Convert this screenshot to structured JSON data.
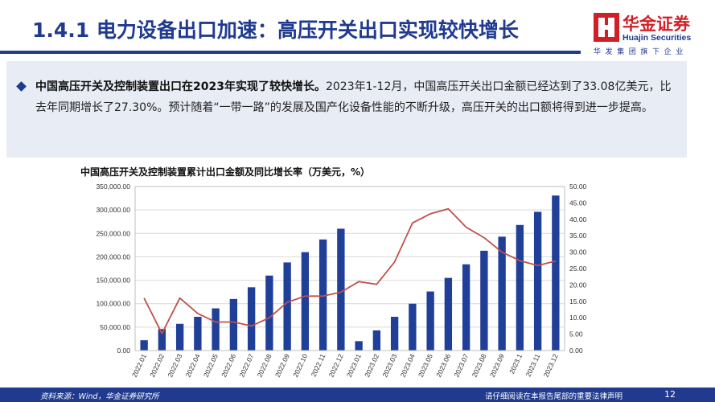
{
  "header": {
    "title": "1.4.1 电力设备出口加速：高压开关出口实现较快增长",
    "logo_cn": "华金证券",
    "logo_en": "Huajin Securities",
    "logo_tagline": "华发集团旗下企业"
  },
  "summary": {
    "lead": "中国高压开关及控制装置出口在2023年实现了较快增长。",
    "body": "2023年1-12月，中国高压开关出口金额已经达到了33.08亿美元，比去年同期增长了27.30%。预计随着“一带一路”的发展及国产化设备性能的不断升级，高压开关的出口额将得到进一步提高。"
  },
  "chart_data": {
    "type": "bar",
    "title": "中国高压开关及控制装置累计出口金额及同比增长率（万美元，%）",
    "categories": [
      "2022.01",
      "2022.02",
      "2022.03",
      "2022.04",
      "2022.05",
      "2022.06",
      "2022.07",
      "2022.08",
      "2022.09",
      "2022.10",
      "2022.11",
      "2022.12",
      "2023.01",
      "2023.02",
      "2023.03",
      "2023.04",
      "2023.05",
      "2023.06",
      "2023.07",
      "2023.08",
      "2023.09",
      "2023.1",
      "2023.11",
      "2023.12"
    ],
    "series": [
      {
        "type": "bar",
        "axis": "left",
        "color": "#1f3f98",
        "values": [
          22000,
          46000,
          57000,
          72000,
          90000,
          110000,
          135000,
          160000,
          188000,
          210000,
          237000,
          260000,
          20000,
          43000,
          72000,
          100000,
          126000,
          155000,
          184000,
          213000,
          243000,
          268000,
          296000,
          330800
        ]
      },
      {
        "type": "line",
        "axis": "right",
        "color": "#c0504d",
        "values": [
          16.0,
          5.2,
          16.0,
          11.3,
          8.7,
          8.7,
          7.5,
          10.0,
          14.7,
          16.6,
          16.6,
          17.8,
          21.0,
          20.2,
          27.0,
          38.9,
          41.7,
          43.2,
          37.6,
          34.4,
          30.0,
          27.4,
          25.9,
          27.3
        ]
      }
    ],
    "y_left": {
      "min": 0,
      "max": 350000,
      "step": 50000,
      "tick_labels": [
        "0.00",
        "50,000.00",
        "100,000.00",
        "150,000.00",
        "200,000.00",
        "250,000.00",
        "300,000.00",
        "350,000.00"
      ]
    },
    "y_right": {
      "min": 0,
      "max": 50,
      "step": 5,
      "tick_labels": [
        "0.00",
        "5.00",
        "10.00",
        "15.00",
        "20.00",
        "25.00",
        "30.00",
        "35.00",
        "40.00",
        "45.00",
        "50.00"
      ]
    },
    "grid": true,
    "legend": "none"
  },
  "footer": {
    "source": "资料来源：Wind，华金证券研究所",
    "disclaimer": "请仔细阅读在本报告尾部的重要法律声明",
    "page": "12"
  }
}
